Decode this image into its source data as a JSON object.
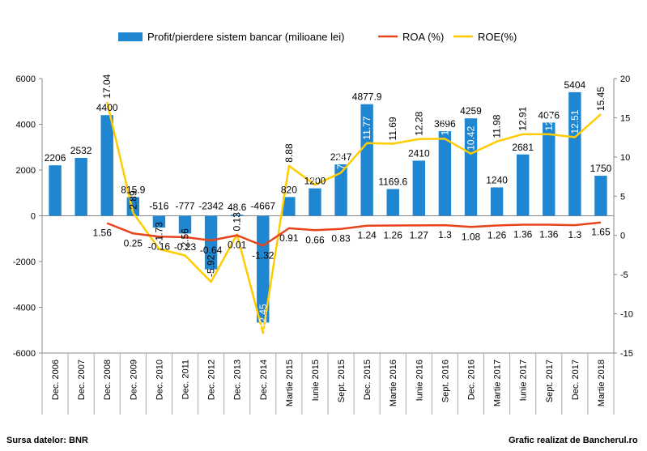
{
  "chart_data": {
    "type": "bar",
    "categories": [
      "Dec. 2006",
      "Dec. 2007",
      "Dec. 2008",
      "Dec. 2009",
      "Dec. 2010",
      "Dec. 2011",
      "Dec. 2012",
      "Dec. 2013",
      "Dec. 2014",
      "Martie 2015",
      "Iunie 2015",
      "Sept. 2015",
      "Dec. 2015",
      "Martie 2016",
      "Iunie 2016",
      "Sept. 2016",
      "Dec. 2016",
      "Martie 2017",
      "Iunie 2017",
      "Sept. 2017",
      "Dec. 2017",
      "Martie 2018"
    ],
    "series": [
      {
        "name": "Profit/pierdere sistem bancar (milioane lei)",
        "axis": "left",
        "kind": "bar",
        "color": "#1F86D1",
        "values": [
          2206,
          2532,
          4400,
          815.9,
          -516,
          -777,
          -2342,
          48.6,
          -4667,
          820,
          1200,
          2247,
          4877.9,
          1169.6,
          2410,
          3696,
          4259,
          1240,
          2681,
          4076,
          5404,
          1750
        ],
        "labels": [
          "2206",
          "2532",
          "4400",
          "815.9",
          "-516",
          "-777",
          "-2342",
          "48.6",
          "-4667",
          "820",
          "1200",
          "2247",
          "4877.9",
          "1169.6",
          "2410",
          "3696",
          "4259",
          "1240",
          "2681",
          "4076",
          "5404",
          "1750"
        ]
      },
      {
        "name": "ROA (%)",
        "axis": "right",
        "kind": "line",
        "color": "#E8431B",
        "values": [
          null,
          null,
          1.56,
          0.25,
          -0.16,
          -0.23,
          -0.64,
          0.01,
          -1.32,
          0.91,
          0.66,
          0.83,
          1.24,
          1.26,
          1.27,
          1.3,
          1.08,
          1.26,
          1.36,
          1.36,
          1.3,
          1.65
        ],
        "labels": [
          null,
          null,
          "1.56",
          "0.25",
          "-0.16",
          "-0.23",
          "-0.64",
          "0.01",
          "-1.32",
          "0.91",
          "0.66",
          "0.83",
          "1.24",
          "1.26",
          "1.27",
          "1.3",
          "1.08",
          "1.26",
          "1.36",
          "1.36",
          "1.3",
          "1.65"
        ]
      },
      {
        "name": "ROE(%)",
        "axis": "right",
        "kind": "line",
        "color": "#FFCC00",
        "values": [
          null,
          null,
          17.04,
          2.89,
          -1.73,
          -2.56,
          -5.92,
          0.13,
          -12.45,
          8.88,
          6.44,
          7.98,
          11.77,
          11.69,
          12.28,
          12.32,
          10.42,
          11.98,
          12.91,
          12.9,
          12.51,
          15.45
        ],
        "labels": [
          null,
          null,
          "17.04",
          "2.89",
          "-1.73",
          "-2.56",
          "-5.92",
          "0.13",
          "-12.45",
          "8.88",
          "6.44",
          "7.98",
          "11.77",
          "11.69",
          "12.28",
          "12.32",
          "10.42",
          "11.98",
          "12.91",
          "12.9",
          "12.51",
          "15.45"
        ]
      }
    ],
    "ylim_left": [
      -6000,
      6000
    ],
    "yticks_left": [
      "6000",
      "4000",
      "2000",
      "0",
      "-2000",
      "-4000",
      "-6000"
    ],
    "ylim_right": [
      -15,
      20
    ],
    "yticks_right": [
      "20",
      "15",
      "10",
      "5",
      "0",
      "-5",
      "-10",
      "-15"
    ],
    "grid": false,
    "legend_position": "top"
  },
  "footer": {
    "source": "Sursa datelor: BNR",
    "credit": "Grafic realizat de Bancherul.ro"
  }
}
